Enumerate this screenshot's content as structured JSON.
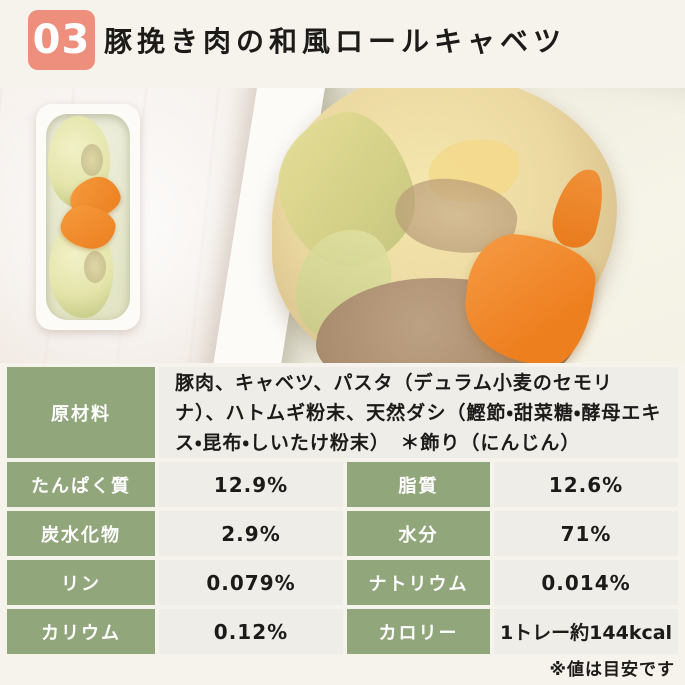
{
  "header": {
    "number": "03",
    "title": "豚挽き肉の和風ロールキャベツ"
  },
  "ingredients": {
    "label": "原材料",
    "value": "豚肉、キャベツ、パスタ（デュラム小麦のセモリナ）、ハトムギ粉末、天然ダシ（鰹節・甜菜糖・酵母エキス・昆布・しいたけ粉末）　＊飾り（にんじん）"
  },
  "nutrients": [
    {
      "label": "たんぱく質",
      "value": "12.9%"
    },
    {
      "label": "脂質",
      "value": "12.6%"
    },
    {
      "label": "炭水化物",
      "value": "2.9%"
    },
    {
      "label": "水分",
      "value": "71%"
    },
    {
      "label": "リン",
      "value": "0.079%"
    },
    {
      "label": "ナトリウム",
      "value": "0.014%"
    },
    {
      "label": "カリウム",
      "value": "0.12%"
    },
    {
      "label": "カロリー",
      "value": "1トレー約144kcal"
    }
  ],
  "note": "※値は目安です",
  "colors": {
    "accent": "#ee8f7d",
    "green": "#92a67c",
    "cell_bg": "#eeede8",
    "page_bg": "#f6f2ec",
    "carrot": "#ee8630"
  }
}
